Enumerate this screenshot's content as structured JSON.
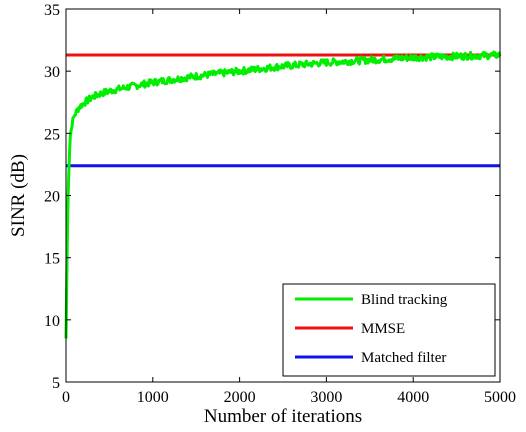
{
  "chart_data": {
    "type": "line",
    "xlabel": "Number of iterations",
    "ylabel": "SINR (dB)",
    "xlim": [
      0,
      5000
    ],
    "ylim": [
      5,
      35
    ],
    "xticks": [
      0,
      1000,
      2000,
      3000,
      4000,
      5000
    ],
    "yticks": [
      5,
      10,
      15,
      20,
      25,
      30,
      35
    ],
    "grid": false,
    "legend_position": "bottom-right",
    "series": [
      {
        "name": "Blind tracking",
        "color": "#00ee00",
        "noisy": true,
        "x": [
          0,
          10,
          20,
          30,
          40,
          50,
          70,
          100,
          150,
          200,
          300,
          400,
          500,
          700,
          1000,
          1500,
          2000,
          2500,
          3000,
          3500,
          4000,
          4500,
          5000
        ],
        "y": [
          8.5,
          14.0,
          18.5,
          21.5,
          23.5,
          24.8,
          25.8,
          26.5,
          27.1,
          27.4,
          27.9,
          28.2,
          28.4,
          28.7,
          29.1,
          29.6,
          30.0,
          30.4,
          30.7,
          30.9,
          31.1,
          31.2,
          31.3
        ]
      },
      {
        "name": "MMSE",
        "color": "#ee1111",
        "x": [
          0,
          5000
        ],
        "y": [
          31.3,
          31.3
        ]
      },
      {
        "name": "Matched filter",
        "color": "#1111ee",
        "x": [
          0,
          5000
        ],
        "y": [
          22.4,
          22.4
        ]
      }
    ]
  }
}
